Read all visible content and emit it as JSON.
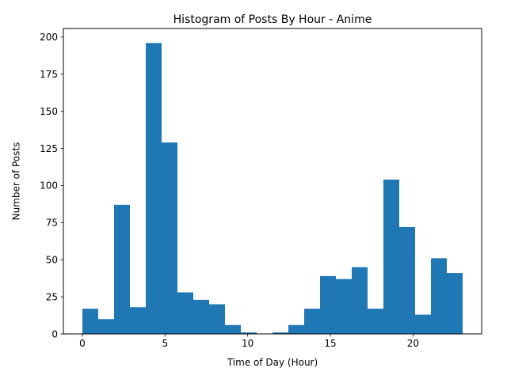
{
  "chart_data": {
    "type": "bar",
    "title": "Histogram of Posts By Hour - Anime",
    "xlabel": "Time of Day (Hour)",
    "ylabel": "Number of Posts",
    "bin_edges": [
      0,
      0.958,
      1.917,
      2.875,
      3.833,
      4.792,
      5.75,
      6.708,
      7.667,
      8.625,
      9.583,
      10.542,
      11.5,
      12.458,
      13.417,
      14.375,
      15.333,
      16.292,
      17.25,
      18.208,
      19.167,
      20.125,
      21.083,
      22.042,
      23
    ],
    "values": [
      17,
      10,
      87,
      18,
      196,
      129,
      28,
      23,
      20,
      6,
      1,
      0,
      1,
      6,
      17,
      39,
      37,
      45,
      17,
      104,
      72,
      13,
      51,
      41
    ],
    "xlim": [
      -1.15,
      24.15
    ],
    "ylim": [
      0,
      205.8
    ],
    "xticks": [
      0,
      5,
      10,
      15,
      20
    ],
    "xtick_labels": [
      "0",
      "5",
      "10",
      "15",
      "20"
    ],
    "yticks": [
      0,
      25,
      50,
      75,
      100,
      125,
      150,
      175,
      200
    ],
    "ytick_labels": [
      "0",
      "25",
      "50",
      "75",
      "100",
      "125",
      "150",
      "175",
      "200"
    ],
    "bar_color": "#1f77b4",
    "grid": false,
    "legend": "none"
  }
}
